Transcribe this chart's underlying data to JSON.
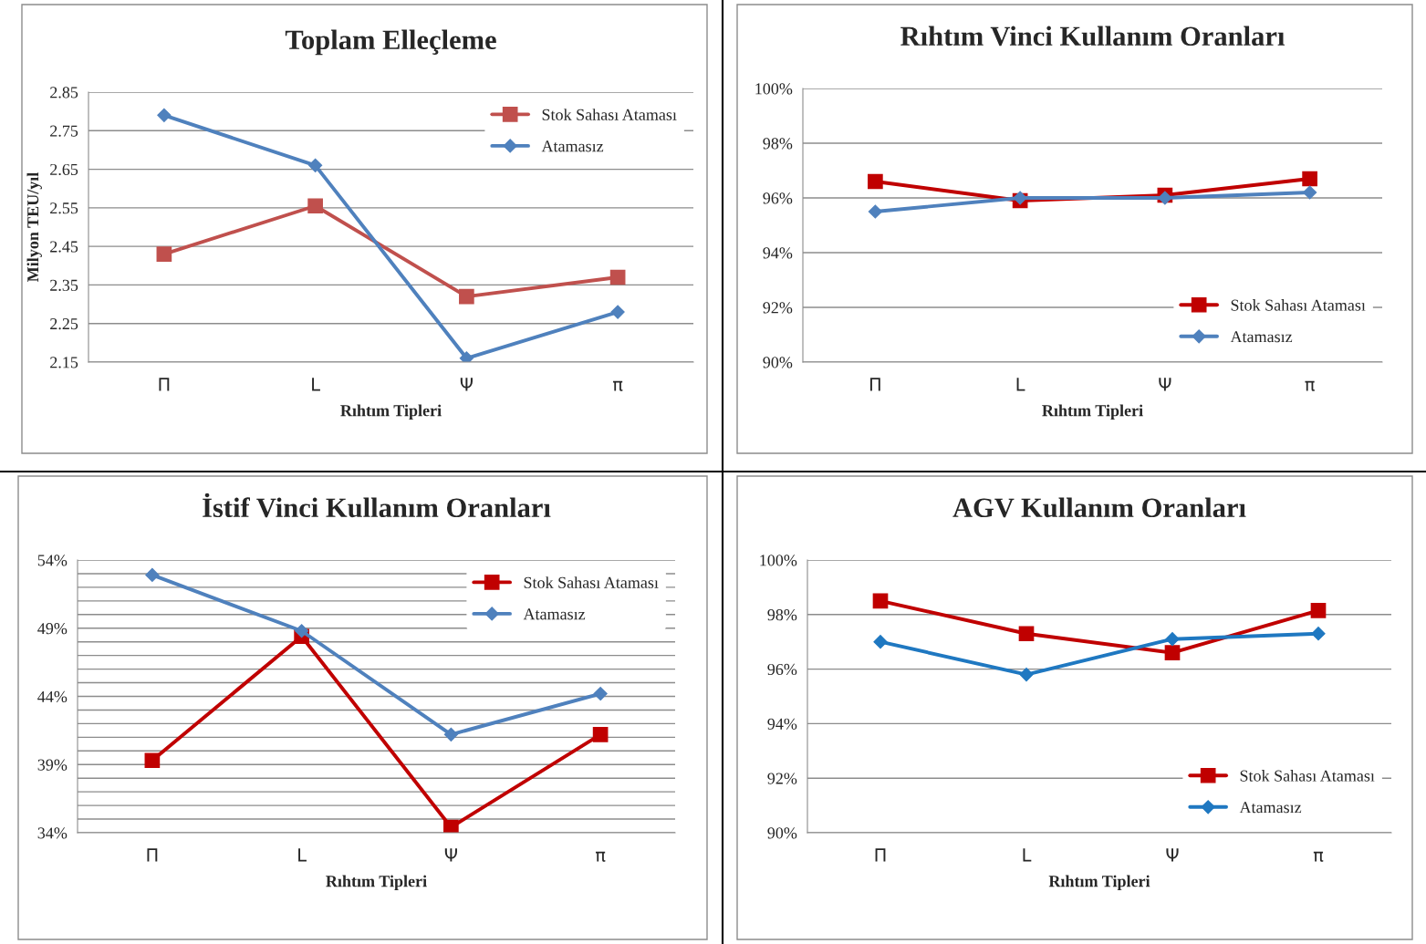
{
  "chart_data": [
    {
      "type": "line",
      "title": "Toplam Elleçleme",
      "xlabel": "Rıhtım Tipleri",
      "ylabel": "Milyon TEU/yıl",
      "categories": [
        "Π",
        "L",
        "Ψ",
        "π"
      ],
      "ylim": [
        2.15,
        2.85
      ],
      "yticks": [
        2.15,
        2.25,
        2.35,
        2.45,
        2.55,
        2.65,
        2.75,
        2.85
      ],
      "grid": "y",
      "legend": "top right",
      "series": [
        {
          "name": "Stok Sahası Ataması",
          "color": "#c0504d",
          "marker": "square",
          "values": [
            2.43,
            2.555,
            2.32,
            2.37
          ]
        },
        {
          "name": "Atamasız",
          "color": "#4f81bd",
          "marker": "diamond",
          "values": [
            2.79,
            2.66,
            2.16,
            2.28
          ]
        }
      ]
    },
    {
      "type": "line",
      "title": "Rıhtım Vinci Kullanım Oranları",
      "xlabel": "Rıhtım Tipleri",
      "categories": [
        "Π",
        "L",
        "Ψ",
        "π"
      ],
      "ylim": [
        90,
        100
      ],
      "yticks": [
        {
          "value": 90,
          "label": "90%"
        },
        {
          "value": 92,
          "label": "92%"
        },
        {
          "value": 94,
          "label": "94%"
        },
        {
          "value": 96,
          "label": "96%"
        },
        {
          "value": 98,
          "label": "98%"
        },
        {
          "value": 100,
          "label": "100%"
        }
      ],
      "grid": "y",
      "legend": "bottom right",
      "series": [
        {
          "name": "Stok Sahası Ataması",
          "color": "#c00000",
          "marker": "square",
          "values": [
            96.6,
            95.9,
            96.1,
            96.7
          ]
        },
        {
          "name": "Atamasız",
          "color": "#4f81bd",
          "marker": "diamond",
          "values": [
            95.5,
            96.0,
            96.0,
            96.2
          ]
        }
      ]
    },
    {
      "type": "line",
      "title": "İstif Vinci Kullanım Oranları",
      "xlabel": "Rıhtım Tipleri",
      "categories": [
        "Π",
        "L",
        "Ψ",
        "π"
      ],
      "ylim": [
        34,
        54
      ],
      "yticks": [
        {
          "value": 34,
          "label": "34%"
        },
        {
          "value": 35,
          "label": null
        },
        {
          "value": 36,
          "label": null
        },
        {
          "value": 37,
          "label": null
        },
        {
          "value": 38,
          "label": null
        },
        {
          "value": 39,
          "label": "39%"
        },
        {
          "value": 40,
          "label": null
        },
        {
          "value": 41,
          "label": null
        },
        {
          "value": 42,
          "label": null
        },
        {
          "value": 43,
          "label": null
        },
        {
          "value": 44,
          "label": "44%"
        },
        {
          "value": 45,
          "label": null
        },
        {
          "value": 46,
          "label": null
        },
        {
          "value": 47,
          "label": null
        },
        {
          "value": 48,
          "label": null
        },
        {
          "value": 49,
          "label": "49%"
        },
        {
          "value": 50,
          "label": null
        },
        {
          "value": 51,
          "label": null
        },
        {
          "value": 52,
          "label": null
        },
        {
          "value": 53,
          "label": null
        },
        {
          "value": 54,
          "label": "54%"
        }
      ],
      "grid": "y",
      "legend": "top right",
      "series": [
        {
          "name": "Stok Sahası Ataması",
          "color": "#c00000",
          "marker": "square",
          "values": [
            39.3,
            48.4,
            34.4,
            41.2
          ]
        },
        {
          "name": "Atamasız",
          "color": "#4f81bd",
          "marker": "diamond",
          "values": [
            52.9,
            48.8,
            41.2,
            44.2
          ]
        }
      ]
    },
    {
      "type": "line",
      "title": "AGV Kullanım Oranları",
      "xlabel": "Rıhtım Tipleri",
      "categories": [
        "Π",
        "L",
        "Ψ",
        "π"
      ],
      "ylim": [
        90,
        100
      ],
      "yticks": [
        {
          "value": 90,
          "label": "90%"
        },
        {
          "value": 92,
          "label": "92%"
        },
        {
          "value": 94,
          "label": "94%"
        },
        {
          "value": 96,
          "label": "96%"
        },
        {
          "value": 98,
          "label": "98%"
        },
        {
          "value": 100,
          "label": "100%"
        }
      ],
      "grid": "y",
      "legend": "bottom right",
      "series": [
        {
          "name": "Stok Sahası Ataması",
          "color": "#c00000",
          "marker": "square",
          "values": [
            98.5,
            97.3,
            96.6,
            98.15
          ]
        },
        {
          "name": "Atamasız",
          "color": "#1f78c1",
          "marker": "diamond",
          "values": [
            97.0,
            95.8,
            97.1,
            97.3
          ]
        }
      ]
    }
  ]
}
